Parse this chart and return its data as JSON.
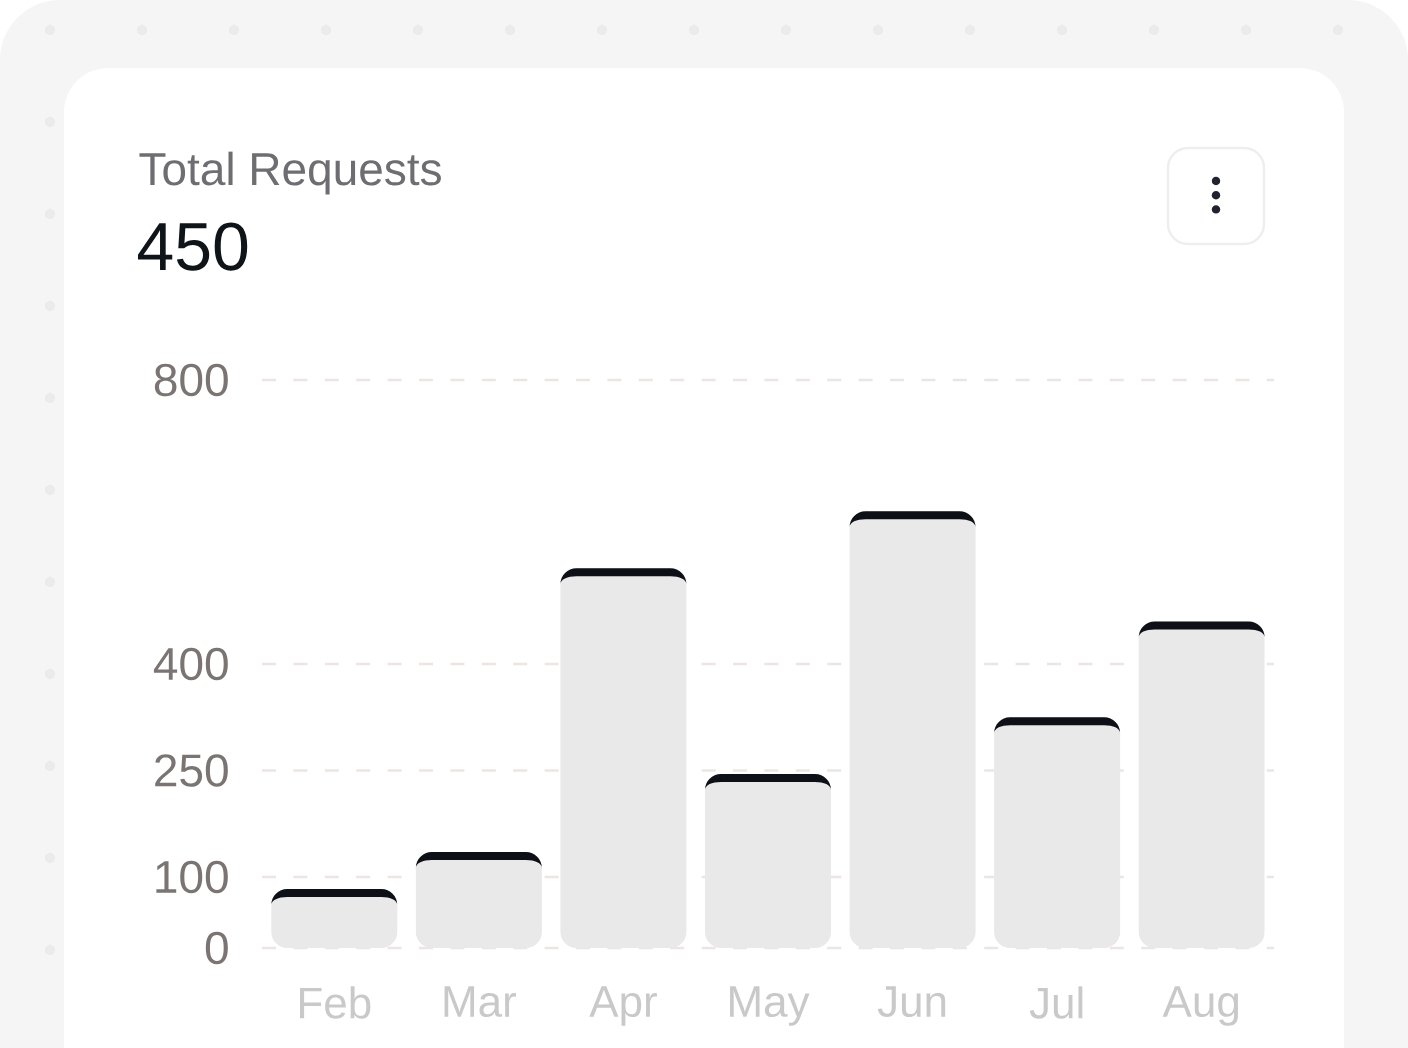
{
  "chart_data": {
    "type": "bar",
    "title": "Total Requests",
    "subtitle": "450",
    "categories": [
      "Feb",
      "Mar",
      "Apr",
      "May",
      "Jun",
      "Jul",
      "Aug"
    ],
    "values": [
      83,
      135,
      535,
      245,
      615,
      325,
      460
    ],
    "color": "#e9e9e9",
    "ylim": [
      0,
      800
    ],
    "yticks": [
      0,
      100,
      250,
      400,
      800
    ],
    "grid": "y"
  }
}
